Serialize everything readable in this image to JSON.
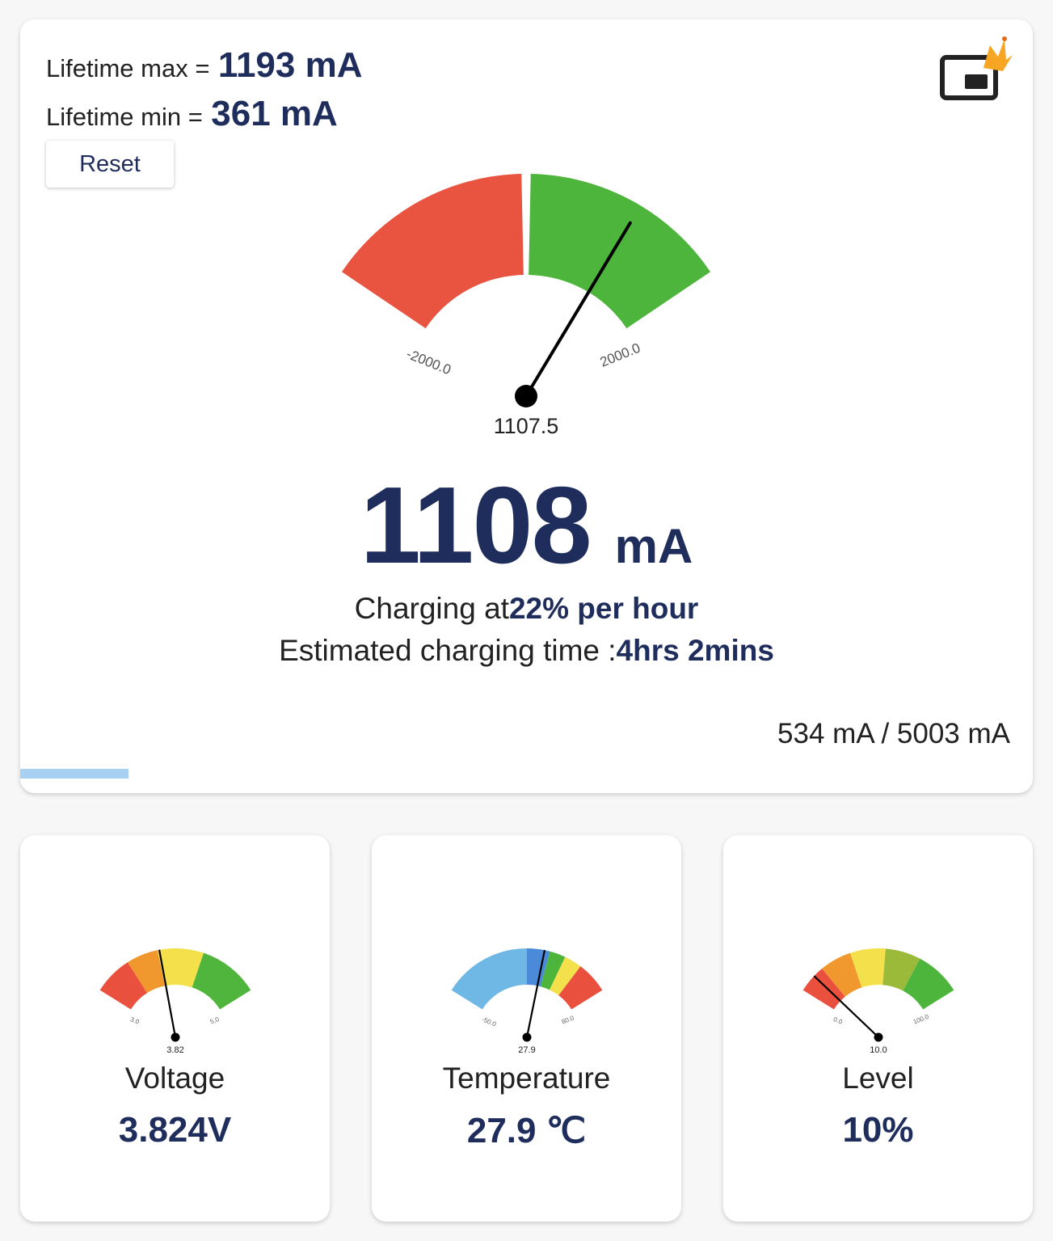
{
  "header": {
    "lifetime_max_label": "Lifetime max =",
    "lifetime_max_value": "1193 mA",
    "lifetime_min_label": "Lifetime min =",
    "lifetime_min_value": "361 mA",
    "reset_label": "Reset",
    "pip_icon": "picture-in-picture-crown-icon"
  },
  "main_gauge": {
    "min_label": "-2000.0",
    "max_label": "2000.0",
    "value_label": "1107.5",
    "value": 1107.5,
    "min": -2000,
    "max": 2000,
    "colors": {
      "negative": "#e95440",
      "positive": "#4db53c",
      "divider": "#ffffff"
    }
  },
  "current": {
    "value": "1108",
    "unit": "mA"
  },
  "charging": {
    "rate_prefix": "Charging at",
    "rate_value": "22% per hour",
    "time_prefix": "Estimated charging time :",
    "time_value": "4hrs 2mins"
  },
  "capacity": {
    "text": "534 mA / 5003 mA",
    "fraction": 0.1067
  },
  "cards": [
    {
      "id": "voltage",
      "title": "Voltage",
      "value": "3.824V",
      "gauge": {
        "min": 3.0,
        "max": 5.0,
        "value": 3.82,
        "min_label": "3.0",
        "max_label": "5.0",
        "value_label": "3.82",
        "bands": [
          {
            "to": 0.22,
            "color": "#e9503e"
          },
          {
            "to": 0.4,
            "color": "#f0972d"
          },
          {
            "to": 0.66,
            "color": "#f4e04a"
          },
          {
            "to": 1.0,
            "color": "#50b53c"
          }
        ]
      }
    },
    {
      "id": "temperature",
      "title": "Temperature",
      "value": "27.9 ℃",
      "gauge": {
        "min": -50,
        "max": 80,
        "value": 27.9,
        "min_label": "-50.0",
        "max_label": "80.0",
        "value_label": "27.9",
        "bands": [
          {
            "to": 0.5,
            "color": "#6fb8e6"
          },
          {
            "to": 0.63,
            "color": "#4a8ad9"
          },
          {
            "to": 0.72,
            "color": "#4db53c"
          },
          {
            "to": 0.82,
            "color": "#f4e04a"
          },
          {
            "to": 1.0,
            "color": "#e9503e"
          }
        ]
      }
    },
    {
      "id": "level",
      "title": "Level",
      "value": "10%",
      "gauge": {
        "min": 0,
        "max": 100,
        "value": 10.0,
        "min_label": "0.0",
        "max_label": "100.0",
        "value_label": "10.0",
        "bands": [
          {
            "to": 0.16,
            "color": "#e9503e"
          },
          {
            "to": 0.34,
            "color": "#f0972d"
          },
          {
            "to": 0.54,
            "color": "#f4e04a"
          },
          {
            "to": 0.74,
            "color": "#9cba3a"
          },
          {
            "to": 1.0,
            "color": "#4db53c"
          }
        ]
      }
    }
  ]
}
